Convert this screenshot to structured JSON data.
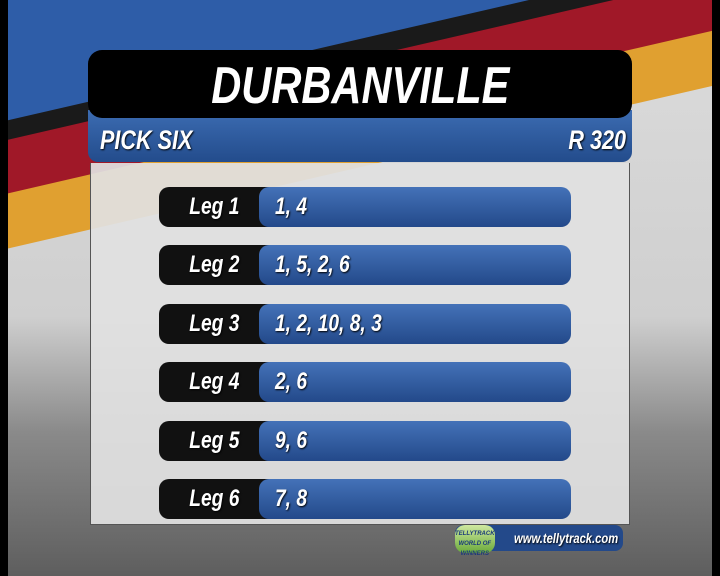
{
  "header": {
    "title": "DURBANVILLE",
    "bet_type": "PICK SIX",
    "amount": "R 320"
  },
  "legs": [
    {
      "label": "Leg 1",
      "selections": "1, 4"
    },
    {
      "label": "Leg 2",
      "selections": "1, 5, 2, 6"
    },
    {
      "label": "Leg 3",
      "selections": "1, 2, 10, 8, 3"
    },
    {
      "label": "Leg 4",
      "selections": "2, 6"
    },
    {
      "label": "Leg 5",
      "selections": "9, 6"
    },
    {
      "label": "Leg 6",
      "selections": "7, 8"
    }
  ],
  "footer": {
    "logo_text": "TELLYTRACK",
    "logo_tagline": "WORLD OF WINNERS",
    "url": "www.tellytrack.com"
  },
  "colors": {
    "blue": "#2e5da8",
    "red": "#a01828",
    "orange": "#e0a030",
    "bar_black": "#111111"
  }
}
